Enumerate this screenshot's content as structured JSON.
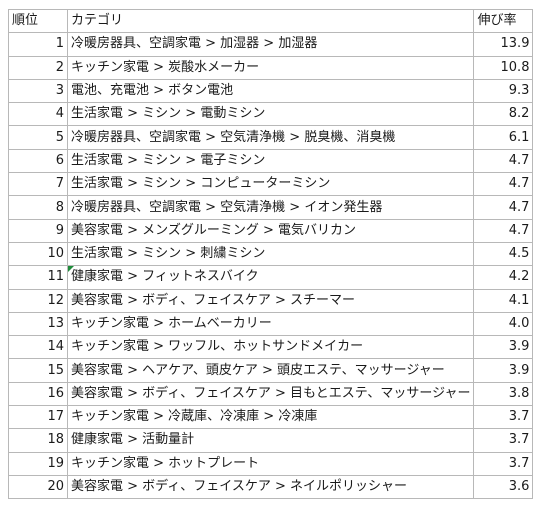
{
  "headers": {
    "rank": "順位",
    "category": "カテゴリ",
    "rate": "伸び率"
  },
  "rows": [
    {
      "rank": "1",
      "category": "冷暖房器具、空調家電 > 加湿器 > 加湿器",
      "rate": "13.9"
    },
    {
      "rank": "2",
      "category": "キッチン家電 > 炭酸水メーカー",
      "rate": "10.8"
    },
    {
      "rank": "3",
      "category": "電池、充電池 > ボタン電池",
      "rate": "9.3"
    },
    {
      "rank": "4",
      "category": "生活家電 > ミシン > 電動ミシン",
      "rate": "8.2"
    },
    {
      "rank": "5",
      "category": "冷暖房器具、空調家電 > 空気清浄機 > 脱臭機、消臭機",
      "rate": "6.1"
    },
    {
      "rank": "6",
      "category": "生活家電 > ミシン > 電子ミシン",
      "rate": "4.7"
    },
    {
      "rank": "7",
      "category": "生活家電 > ミシン > コンピューターミシン",
      "rate": "4.7"
    },
    {
      "rank": "8",
      "category": "冷暖房器具、空調家電 > 空気清浄機 > イオン発生器",
      "rate": "4.7"
    },
    {
      "rank": "9",
      "category": "美容家電 > メンズグルーミング > 電気バリカン",
      "rate": "4.7"
    },
    {
      "rank": "10",
      "category": "生活家電 > ミシン > 刺繍ミシン",
      "rate": "4.5"
    },
    {
      "rank": "11",
      "category": "健康家電 > フィットネスバイク",
      "rate": "4.2"
    },
    {
      "rank": "12",
      "category": "美容家電 > ボディ、フェイスケア > スチーマー",
      "rate": "4.1"
    },
    {
      "rank": "13",
      "category": "キッチン家電 > ホームベーカリー",
      "rate": "4.0"
    },
    {
      "rank": "14",
      "category": "キッチン家電 > ワッフル、ホットサンドメイカー",
      "rate": "3.9"
    },
    {
      "rank": "15",
      "category": "美容家電 > ヘアケア、頭皮ケア > 頭皮エステ、マッサージャー",
      "rate": "3.9"
    },
    {
      "rank": "16",
      "category": "美容家電 > ボディ、フェイスケア > 目もとエステ、マッサージャー",
      "rate": "3.8"
    },
    {
      "rank": "17",
      "category": "キッチン家電 > 冷蔵庫、冷凍庫 > 冷凍庫",
      "rate": "3.7"
    },
    {
      "rank": "18",
      "category": "健康家電 > 活動量計",
      "rate": "3.7"
    },
    {
      "rank": "19",
      "category": "キッチン家電 > ホットプレート",
      "rate": "3.7"
    },
    {
      "rank": "20",
      "category": "美容家電 > ボディ、フェイスケア > ネイルポリッシャー",
      "rate": "3.6"
    }
  ]
}
